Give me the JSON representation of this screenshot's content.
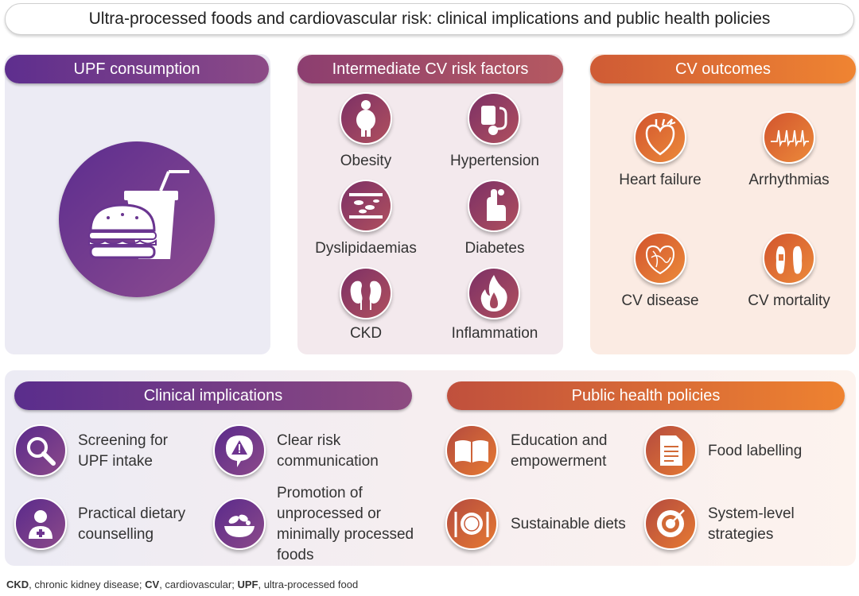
{
  "title": "Ultra-processed foods and cardiovascular risk: clinical implications and public health policies",
  "upf": {
    "header": "UPF consumption",
    "icon": "burger-drink-icon"
  },
  "risk": {
    "header": "Intermediate CV risk factors",
    "items": [
      {
        "label": "Obesity",
        "icon": "obesity-icon"
      },
      {
        "label": "Hypertension",
        "icon": "blood-pressure-icon"
      },
      {
        "label": "Dyslipidaemias",
        "icon": "artery-plaque-icon"
      },
      {
        "label": "Diabetes",
        "icon": "glucose-finger-icon"
      },
      {
        "label": "CKD",
        "icon": "kidney-icon"
      },
      {
        "label": "Inflammation",
        "icon": "flame-icon"
      }
    ]
  },
  "outcomes": {
    "header": "CV outcomes",
    "items": [
      {
        "label": "Heart failure",
        "icon": "heart-icon"
      },
      {
        "label": "Arrhythmias",
        "icon": "ecg-icon"
      },
      {
        "label": "CV disease",
        "icon": "vascular-heart-icon"
      },
      {
        "label": "CV mortality",
        "icon": "feet-tag-icon"
      }
    ]
  },
  "clinical": {
    "header": "Clinical implications",
    "items": [
      {
        "line1": "Screening for",
        "line2": "UPF intake",
        "icon": "magnifier-icon"
      },
      {
        "line1": "Clear risk",
        "line2": "communication",
        "icon": "warning-speech-icon"
      },
      {
        "line1": "Practical dietary",
        "line2": "counselling",
        "icon": "doctor-icon"
      },
      {
        "line1": "Promotion of",
        "line2": "unprocessed or",
        "line3": "minimally processed",
        "line4": "foods",
        "icon": "salad-bowl-icon"
      }
    ]
  },
  "public": {
    "header": "Public health policies",
    "items": [
      {
        "line1": "Education and",
        "line2": "empowerment",
        "icon": "open-book-icon"
      },
      {
        "line1": "Food labelling",
        "icon": "document-icon"
      },
      {
        "line1": "Sustainable diets",
        "icon": "plate-cutlery-icon"
      },
      {
        "line1": "System-level",
        "line2": "strategies",
        "icon": "target-icon"
      }
    ]
  },
  "footnote": {
    "a1": "CKD",
    "d1": ", chronic kidney disease; ",
    "a2": "CV",
    "d2": ", cardiovascular; ",
    "a3": "UPF",
    "d3": ", ultra-processed food"
  }
}
